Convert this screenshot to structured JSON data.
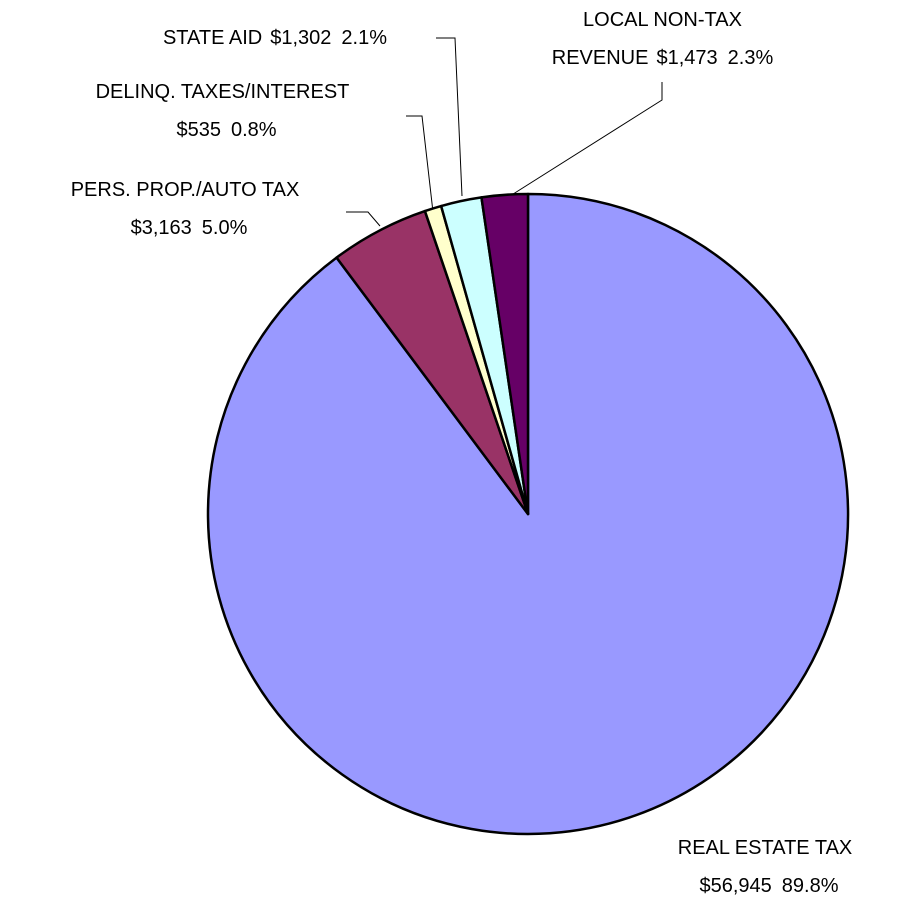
{
  "chart_data": {
    "type": "pie",
    "categories": [
      "REAL ESTATE TAX",
      "PERS. PROP./AUTO TAX",
      "DELINQ. TAXES/INTEREST",
      "STATE AID",
      "LOCAL NON-TAX REVENUE"
    ],
    "values": [
      56945,
      3163,
      535,
      1302,
      1473
    ],
    "value_labels": [
      "$56,945",
      "$3,163",
      "$535",
      "$1,302",
      "$1,473"
    ],
    "percents": [
      89.8,
      5.0,
      0.8,
      2.1,
      2.3
    ],
    "percent_labels": [
      "89.8%",
      "5.0%",
      "0.8%",
      "2.1%",
      "2.3%"
    ],
    "colors": [
      "#9999ff",
      "#993366",
      "#ffffcc",
      "#ccffff",
      "#660066"
    ]
  }
}
